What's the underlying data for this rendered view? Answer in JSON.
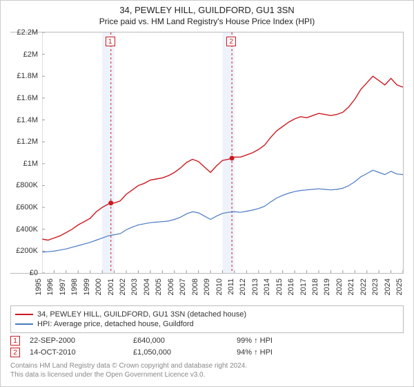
{
  "title_line1": "34, PEWLEY HILL, GUILDFORD, GU1 3SN",
  "title_line2": "Price paid vs. HM Land Registry's House Price Index (HPI)",
  "chart": {
    "type": "line",
    "background_color": "#ffffff",
    "border_color": "#bbbbbb",
    "y_axis": {
      "min": 0,
      "max": 2200000,
      "tick_step": 200000,
      "labels": [
        "£0",
        "£200K",
        "£400K",
        "£600K",
        "£800K",
        "£1M",
        "£1.2M",
        "£1.4M",
        "£1.6M",
        "£1.8M",
        "£2M",
        "£2.2M"
      ]
    },
    "x_axis": {
      "min": 1995,
      "max": 2025,
      "labels": [
        "1995",
        "1996",
        "1997",
        "1998",
        "1999",
        "2000",
        "2001",
        "2002",
        "2003",
        "2004",
        "2005",
        "2006",
        "2007",
        "2008",
        "2009",
        "2010",
        "2011",
        "2012",
        "2013",
        "2014",
        "2015",
        "2016",
        "2017",
        "2018",
        "2019",
        "2020",
        "2021",
        "2022",
        "2023",
        "2024",
        "2025"
      ]
    },
    "series": [
      {
        "id": "property",
        "label": "34, PEWLEY HILL, GUILDFORD, GU1 3SN (detached house)",
        "color": "#cc181e",
        "line_width": 1.4,
        "data": [
          [
            1995.0,
            310000
          ],
          [
            1995.5,
            300000
          ],
          [
            1996.0,
            320000
          ],
          [
            1996.5,
            340000
          ],
          [
            1997.0,
            370000
          ],
          [
            1997.5,
            400000
          ],
          [
            1998.0,
            440000
          ],
          [
            1998.5,
            470000
          ],
          [
            1999.0,
            500000
          ],
          [
            1999.5,
            560000
          ],
          [
            2000.0,
            600000
          ],
          [
            2000.5,
            630000
          ],
          [
            2000.72,
            640000
          ],
          [
            2001.0,
            640000
          ],
          [
            2001.5,
            660000
          ],
          [
            2002.0,
            720000
          ],
          [
            2002.5,
            760000
          ],
          [
            2003.0,
            800000
          ],
          [
            2003.5,
            820000
          ],
          [
            2004.0,
            850000
          ],
          [
            2004.5,
            860000
          ],
          [
            2005.0,
            870000
          ],
          [
            2005.5,
            890000
          ],
          [
            2006.0,
            920000
          ],
          [
            2006.5,
            960000
          ],
          [
            2007.0,
            1010000
          ],
          [
            2007.5,
            1040000
          ],
          [
            2008.0,
            1020000
          ],
          [
            2008.5,
            970000
          ],
          [
            2009.0,
            920000
          ],
          [
            2009.5,
            980000
          ],
          [
            2010.0,
            1030000
          ],
          [
            2010.5,
            1040000
          ],
          [
            2010.78,
            1050000
          ],
          [
            2011.0,
            1060000
          ],
          [
            2011.5,
            1060000
          ],
          [
            2012.0,
            1080000
          ],
          [
            2012.5,
            1100000
          ],
          [
            2013.0,
            1130000
          ],
          [
            2013.5,
            1170000
          ],
          [
            2014.0,
            1240000
          ],
          [
            2014.5,
            1300000
          ],
          [
            2015.0,
            1340000
          ],
          [
            2015.5,
            1380000
          ],
          [
            2016.0,
            1410000
          ],
          [
            2016.5,
            1430000
          ],
          [
            2017.0,
            1420000
          ],
          [
            2017.5,
            1440000
          ],
          [
            2018.0,
            1460000
          ],
          [
            2018.5,
            1450000
          ],
          [
            2019.0,
            1440000
          ],
          [
            2019.5,
            1450000
          ],
          [
            2020.0,
            1470000
          ],
          [
            2020.5,
            1520000
          ],
          [
            2021.0,
            1590000
          ],
          [
            2021.5,
            1680000
          ],
          [
            2022.0,
            1740000
          ],
          [
            2022.5,
            1800000
          ],
          [
            2023.0,
            1760000
          ],
          [
            2023.5,
            1720000
          ],
          [
            2024.0,
            1780000
          ],
          [
            2024.5,
            1720000
          ],
          [
            2025.0,
            1700000
          ]
        ]
      },
      {
        "id": "hpi",
        "label": "HPI: Average price, detached house, Guildford",
        "color": "#4a79c4",
        "line_width": 1.2,
        "data": [
          [
            1995.0,
            190000
          ],
          [
            1995.5,
            195000
          ],
          [
            1996.0,
            200000
          ],
          [
            1996.5,
            210000
          ],
          [
            1997.0,
            220000
          ],
          [
            1997.5,
            235000
          ],
          [
            1998.0,
            250000
          ],
          [
            1998.5,
            265000
          ],
          [
            1999.0,
            280000
          ],
          [
            1999.5,
            300000
          ],
          [
            2000.0,
            320000
          ],
          [
            2000.5,
            340000
          ],
          [
            2001.0,
            350000
          ],
          [
            2001.5,
            360000
          ],
          [
            2002.0,
            395000
          ],
          [
            2002.5,
            420000
          ],
          [
            2003.0,
            440000
          ],
          [
            2003.5,
            450000
          ],
          [
            2004.0,
            460000
          ],
          [
            2004.5,
            465000
          ],
          [
            2005.0,
            470000
          ],
          [
            2005.5,
            475000
          ],
          [
            2006.0,
            490000
          ],
          [
            2006.5,
            510000
          ],
          [
            2007.0,
            540000
          ],
          [
            2007.5,
            560000
          ],
          [
            2008.0,
            550000
          ],
          [
            2008.5,
            520000
          ],
          [
            2009.0,
            490000
          ],
          [
            2009.5,
            520000
          ],
          [
            2010.0,
            545000
          ],
          [
            2010.5,
            555000
          ],
          [
            2011.0,
            560000
          ],
          [
            2011.5,
            555000
          ],
          [
            2012.0,
            565000
          ],
          [
            2012.5,
            575000
          ],
          [
            2013.0,
            590000
          ],
          [
            2013.5,
            610000
          ],
          [
            2014.0,
            650000
          ],
          [
            2014.5,
            685000
          ],
          [
            2015.0,
            710000
          ],
          [
            2015.5,
            730000
          ],
          [
            2016.0,
            745000
          ],
          [
            2016.5,
            755000
          ],
          [
            2017.0,
            760000
          ],
          [
            2017.5,
            765000
          ],
          [
            2018.0,
            770000
          ],
          [
            2018.5,
            765000
          ],
          [
            2019.0,
            760000
          ],
          [
            2019.5,
            765000
          ],
          [
            2020.0,
            775000
          ],
          [
            2020.5,
            800000
          ],
          [
            2021.0,
            835000
          ],
          [
            2021.5,
            880000
          ],
          [
            2022.0,
            910000
          ],
          [
            2022.5,
            940000
          ],
          [
            2023.0,
            920000
          ],
          [
            2023.5,
            900000
          ],
          [
            2024.0,
            930000
          ],
          [
            2024.5,
            905000
          ],
          [
            2025.0,
            900000
          ]
        ]
      }
    ],
    "sale_markers": [
      {
        "num": "1",
        "x": 2000.72,
        "y": 640000,
        "shade_start": 2000.0,
        "shade_end": 2001.0
      },
      {
        "num": "2",
        "x": 2010.78,
        "y": 1050000,
        "shade_start": 2010.0,
        "shade_end": 2011.0
      }
    ],
    "shade_fill": "#eef3fb",
    "marker_line_color": "#cc181e",
    "marker_fill": "#cc181e",
    "marker_radius": 3.5
  },
  "sales": [
    {
      "num": "1",
      "date": "22-SEP-2000",
      "price": "£640,000",
      "pct": "99% ↑ HPI"
    },
    {
      "num": "2",
      "date": "14-OCT-2010",
      "price": "£1,050,000",
      "pct": "94% ↑ HPI"
    }
  ],
  "disclaimer_line1": "Contains HM Land Registry data © Crown copyright and database right 2024.",
  "disclaimer_line2": "This data is licensed under the Open Government Licence v3.0."
}
